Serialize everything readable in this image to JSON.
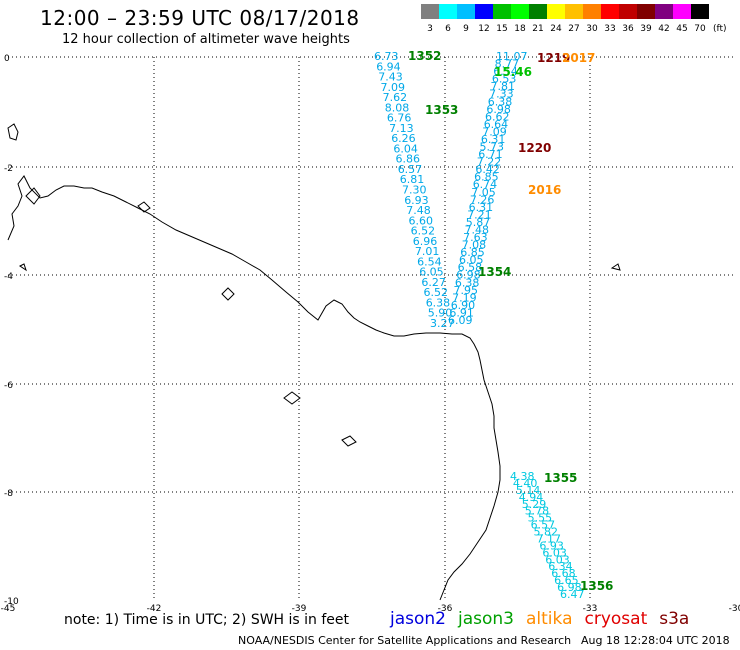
{
  "header": {
    "title": "12:00 – 23:59 UTC 08/17/2018",
    "subtitle": "12 hour collection of altimeter wave heights"
  },
  "legend": {
    "unit": "(ft)",
    "bins": [
      {
        "label": "3",
        "color": "#808080"
      },
      {
        "label": "6",
        "color": "#00ffff"
      },
      {
        "label": "9",
        "color": "#00bfff"
      },
      {
        "label": "12",
        "color": "#0000ff"
      },
      {
        "label": "15",
        "color": "#00c000"
      },
      {
        "label": "18",
        "color": "#00ff00"
      },
      {
        "label": "21",
        "color": "#008000"
      },
      {
        "label": "24",
        "color": "#ffff00"
      },
      {
        "label": "27",
        "color": "#ffc000"
      },
      {
        "label": "30",
        "color": "#ff8000"
      },
      {
        "label": "33",
        "color": "#ff0000"
      },
      {
        "label": "36",
        "color": "#c00000"
      },
      {
        "label": "39",
        "color": "#800000"
      },
      {
        "label": "42",
        "color": "#800080"
      },
      {
        "label": "45",
        "color": "#ff00ff"
      },
      {
        "label": "70",
        "color": "#000000"
      }
    ]
  },
  "map": {
    "lon_ticks": [
      "-45",
      "-42",
      "-39",
      "-36",
      "-33",
      "-30"
    ],
    "lat_ticks": [
      "0",
      "-2",
      "-4",
      "-6",
      "-8",
      "-10"
    ],
    "tracks": [
      {
        "color": "#00a8e8",
        "values": [
          "6.73",
          "6.94",
          "7.43",
          "7.09",
          "7.62",
          "8.08",
          "6.76",
          "7.13",
          "6.26",
          "6.04",
          "6.86",
          "6.57",
          "6.81",
          "7.30",
          "6.93",
          "7.48",
          "6.60",
          "6.52",
          "6.96",
          "7.01",
          "6.54",
          "6.05",
          "6.27",
          "6.52",
          "6.38",
          "5.90",
          "3.27"
        ]
      },
      {
        "color": "#00a8e8",
        "values": [
          "11.07",
          "8.77",
          "6.54",
          "6.53",
          "7.81",
          "7.33",
          "6.38",
          "6.98",
          "6.62",
          "6.64",
          "7.09",
          "6.31",
          "5.73",
          "6.71",
          "7.22",
          "6.42",
          "6.85",
          "6.74",
          "7.05",
          "7.26",
          "6.31",
          "7.21",
          "5.87",
          "7.48",
          "7.63",
          "7.08",
          "6.85",
          "6.05",
          "6.58",
          "6.98",
          "6.38",
          "7.95",
          "7.19",
          "6.90",
          "6.91",
          "6.09"
        ]
      },
      {
        "color": "#00c8e0",
        "values": [
          "4.38",
          "4.40",
          "5.14",
          "4.94",
          "5.29",
          "5.78",
          "5.55",
          "6.57",
          "5.82",
          "7.17",
          "6.93",
          "6.03",
          "6.03",
          "6.34",
          "6.68",
          "6.65",
          "6.98",
          "6.47"
        ]
      }
    ],
    "time_labels": [
      {
        "text": "1352",
        "color": "#008000"
      },
      {
        "text": "1353",
        "color": "#008000"
      },
      {
        "text": "1354",
        "color": "#008000"
      },
      {
        "text": "1355",
        "color": "#008000"
      },
      {
        "text": "1356",
        "color": "#008000"
      },
      {
        "text": "1219",
        "color": "#800000"
      },
      {
        "text": "1220",
        "color": "#800000"
      },
      {
        "text": "2016",
        "color": "#ff8c00"
      },
      {
        "text": "2017",
        "color": "#ff8c00"
      },
      {
        "text": "15.46",
        "color": "#00c000"
      }
    ]
  },
  "footer": {
    "note": "note:  1) Time is in UTC;  2) SWH is in feet",
    "satellites": [
      {
        "name": "jason2",
        "color": "#0000dd"
      },
      {
        "name": "jason3",
        "color": "#00a000"
      },
      {
        "name": "altika",
        "color": "#ff8c00"
      },
      {
        "name": "cryosat",
        "color": "#e00000"
      },
      {
        "name": "s3a",
        "color": "#800000"
      }
    ],
    "credit": "NOAA/NESDIS Center for Satellite Applications and Research",
    "timestamp": "Aug 18 12:28:04 UTC 2018"
  }
}
